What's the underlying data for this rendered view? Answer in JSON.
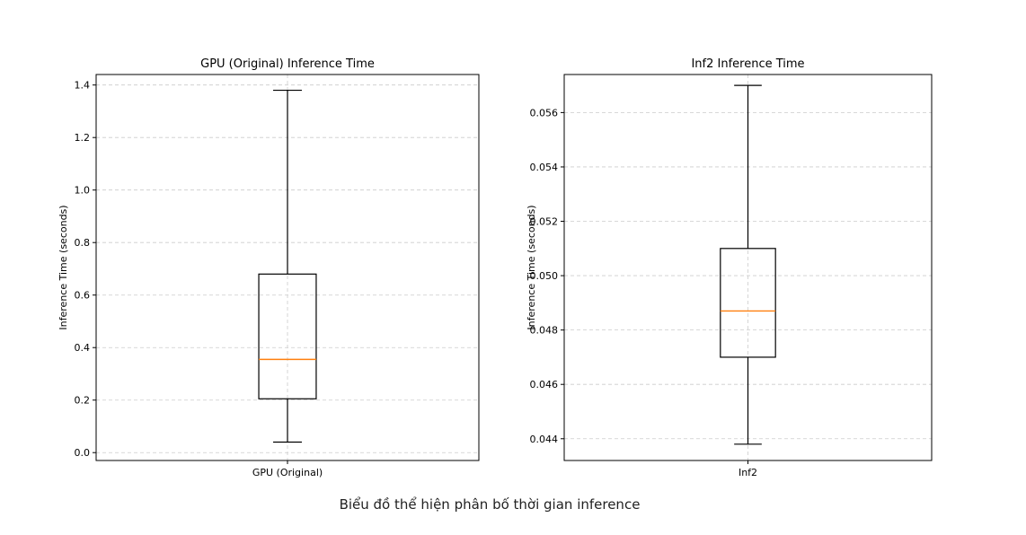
{
  "caption": "Biểu đồ thể hiện phân bố thời gian inference",
  "colors": {
    "box": "#000000",
    "median": "#ff7f0e",
    "grid": "#cccccc",
    "text": "#000000"
  },
  "chart_data": [
    {
      "type": "box",
      "title": "GPU (Original) Inference Time",
      "xlabel": "",
      "ylabel": "Inference Time (seconds)",
      "categories": [
        "GPU (Original)"
      ],
      "ylim": [
        -0.03,
        1.44
      ],
      "yticks": [
        0.0,
        0.2,
        0.4,
        0.6,
        0.8,
        1.0,
        1.2,
        1.4
      ],
      "ytick_labels": [
        "0.0",
        "0.2",
        "0.4",
        "0.6",
        "0.8",
        "1.0",
        "1.2",
        "1.4"
      ],
      "grid": true,
      "boxes": [
        {
          "whisker_low": 0.04,
          "q1": 0.205,
          "median": 0.355,
          "q3": 0.68,
          "whisker_high": 1.38
        }
      ]
    },
    {
      "type": "box",
      "title": "Inf2 Inference Time",
      "xlabel": "",
      "ylabel": "Inference Time (seconds)",
      "categories": [
        "Inf2"
      ],
      "ylim": [
        0.0432,
        0.0574
      ],
      "yticks": [
        0.044,
        0.046,
        0.048,
        0.05,
        0.052,
        0.054,
        0.056
      ],
      "ytick_labels": [
        "0.044",
        "0.046",
        "0.048",
        "0.050",
        "0.052",
        "0.054",
        "0.056"
      ],
      "grid": true,
      "boxes": [
        {
          "whisker_low": 0.0438,
          "q1": 0.047,
          "median": 0.0487,
          "q3": 0.051,
          "whisker_high": 0.057
        }
      ]
    }
  ]
}
